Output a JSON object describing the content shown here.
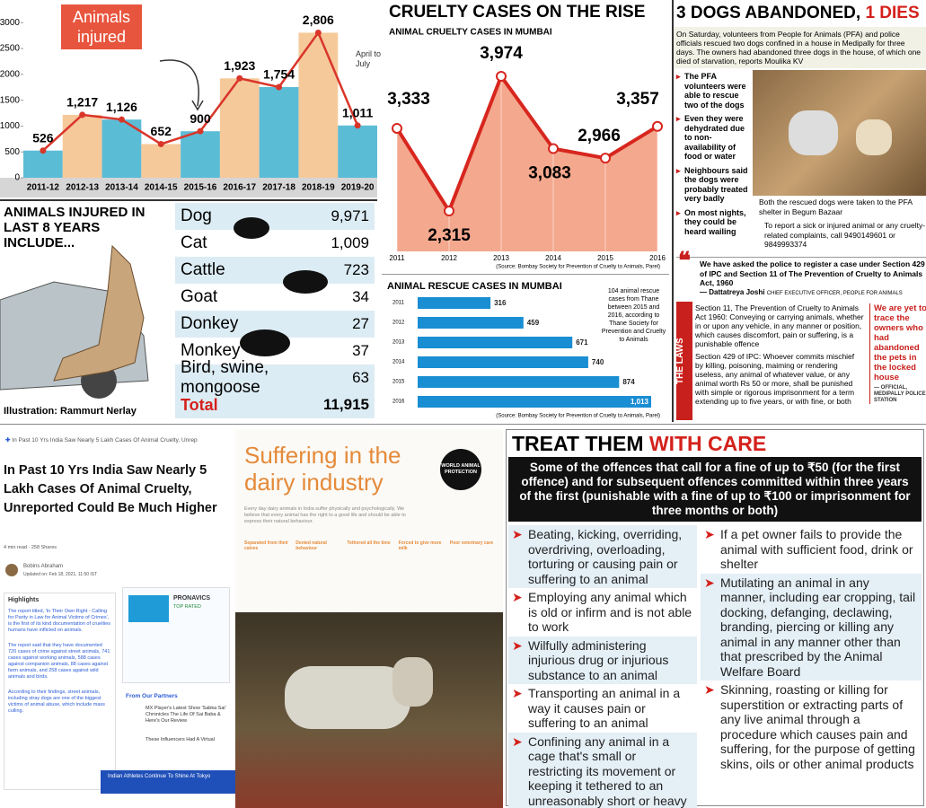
{
  "chart_data": [
    {
      "type": "bar",
      "title": "Animals injured",
      "annotation": "April to July",
      "categories": [
        "2011-12",
        "2012-13",
        "2013-14",
        "2014-15",
        "2015-16",
        "2016-17",
        "2017-18",
        "2018-19",
        "2019-20"
      ],
      "values": [
        526,
        1217,
        1126,
        652,
        900,
        1923,
        1754,
        2806,
        1011
      ],
      "value_labels": [
        "526",
        "1,217",
        "1,126",
        "652",
        "900",
        "1,923",
        "1,754",
        "2,806",
        "1,011"
      ],
      "bar_colors": [
        "#5bbcd6",
        "#f6c99a"
      ],
      "line_color": "#d9362a",
      "ylim": [
        0,
        3300
      ],
      "yticks": [
        0,
        500,
        1000,
        1500,
        2000,
        2500,
        3000
      ]
    },
    {
      "type": "line",
      "title": "CRUELTY CASES ON THE RISE",
      "subtitle": "ANIMAL CRUELTY CASES IN MUMBAI",
      "categories": [
        "2011",
        "2012",
        "2013",
        "2014",
        "2015",
        "2016"
      ],
      "values": [
        3333,
        2315,
        3974,
        3083,
        2966,
        3357
      ],
      "value_labels": [
        "3,333",
        "2,315",
        "3,974",
        "3,083",
        "2,966",
        "3,357"
      ],
      "color": "#d7261e",
      "area_color": "#f4a88e",
      "source": "(Source: Bombay Society for Prevention of Cruelty to Animals, Parel)"
    },
    {
      "type": "hbar",
      "title": "ANIMAL RESCUE CASES IN MUMBAI",
      "categories": [
        "2011",
        "2012",
        "2013",
        "2014",
        "2015",
        "2016"
      ],
      "values": [
        316,
        459,
        671,
        740,
        874,
        1013
      ],
      "value_labels": [
        "316",
        "459",
        "671",
        "740",
        "874",
        "1,013"
      ],
      "color": "#1a8ed3",
      "annotation": "104 animal rescue cases from Thane between 2015 and 2016, according to Thane Society for Prevention and Cruelty to Animals",
      "source": "(Source: Bombay Society for Prevention of Cruelty to Animals, Parel)"
    }
  ],
  "injured_table": {
    "title": "ANIMALS INJURED IN LAST 8 YEARS INCLUDE...",
    "rows": [
      [
        "Dog",
        "9,971"
      ],
      [
        "Cat",
        "1,009"
      ],
      [
        "Cattle",
        "723"
      ],
      [
        "Goat",
        "34"
      ],
      [
        "Donkey",
        "27"
      ],
      [
        "Monkey",
        "37"
      ],
      [
        "Bird, swine, mongoose",
        "63"
      ]
    ],
    "total": [
      "Total",
      "11,915"
    ],
    "credit": "Illustration: Rammurt Nerlay"
  },
  "dogs_article": {
    "title": "3 DOGS ABANDONED, ",
    "title_red": "1 DIES",
    "intro": "On Saturday, volunteers from People for Animals (PFA) and police officials rescued two dogs confined in a house in Medipally for three days. The owners had abandoned three dogs in the house, of which one died of starvation, reports Moulika KV",
    "bullets": [
      "The PFA volunteers were able to rescue two of the dogs",
      "Even they were dehydrated due to non-availability of food or water",
      "Neighbours said the dogs were probably treated very badly",
      "On most nights, they could be heard wailing"
    ],
    "caption": "Both the rescued dogs were taken to the PFA shelter in Begum Bazaar",
    "report": "To report a sick or injured animal or any cruelty-related complaints, call 9490149601 or 9849993374",
    "quote": "We have asked the police to register a case under Section 429 of IPC and Section 11 of The Prevention of Cruelty to Animals Act, 1960",
    "quote_author": "— Dattatreya Joshi",
    "quote_role": "CHIEF EXECUTIVE OFFICER, PEOPLE FOR ANIMALS",
    "laws_tag": "THE LAWS",
    "laws": [
      "Section 11, The Prevention of Cruelty to Animals Act 1960: Conveying or carrying animals, whether in or upon any vehicle, in any manner or position, which causes discomfort, pain or suffering, is a punishable offence",
      "Section 429 of IPC: Whoever commits mischief by killing, poisoning, maiming or rendering useless, any animal of whatever value, or any animal worth Rs 50 or more, shall be punished with simple or rigorous imprisonment for a term extending up to five years, or with fine, or both"
    ],
    "side_quote": "We are yet to trace the owners who had abandoned the pets in the locked house",
    "side_author": "— OFFICIAL, MEDIPALLY POLICE STATION"
  },
  "news_screenshot": {
    "breadcrumb": "In Past 10 Yrs India Saw Nearly 5 Lakh Cases Of Animal Cruelty, Unrep",
    "title": "In Past 10 Yrs India Saw Nearly 5 Lakh Cases Of Animal Cruelty, Unreported Could Be Much Higher",
    "meta": "4 min read · 258 Shares",
    "author": "Bobins Abraham",
    "updated": "Updated on: Feb 18, 2021, 11:50 IST",
    "highlights_title": "Highlights",
    "highlights": [
      "The report titled, 'In Their Own Right - Calling for Parity in Law for Animal Victims of Crimes', is the first of its kind documentation of cruelties humans have inflicted on animals.",
      "The report said that they have documented 720 cases of crime against street animals, 741 cases against working animals, 588 cases against companion animals, 88 cases against farm animals, and 258 cases against wild animals and birds.",
      "According to their findings, street animals, including stray dogs are one of the biggest victims of animal abuse, which include mass culling."
    ],
    "ad_brand": "PRONAVICS",
    "ad_tag": "TOP RATED",
    "partners_title": "From Our Partners",
    "partners": [
      "MX Player's Latest Show 'Sabka Sai' Chronicles The Life Of Sai Baba & Here's Our Review",
      "These Influencers Had A Virtual"
    ],
    "bottom_bar": "Indian Athletes Continue To Shine At Tokyo"
  },
  "dairy": {
    "title": "Suffering in the dairy industry",
    "logo": "WORLD ANIMAL PROTECTION",
    "intro": "Every day dairy animals in India suffer physically and psychologically. We believe that every animal has the right to a good life and should be able to express their natural behaviour.",
    "columns": [
      "Separated from their calves",
      "Denied natural behaviour",
      "Tethered all the time",
      "Forced to give more milk",
      "Poor veterinary care"
    ]
  },
  "treat_care": {
    "title": "TREAT THEM ",
    "title_red": "WITH CARE",
    "box": "Some of the offences that call for a fine of up to ₹50 (for the first offence) and for subsequent offences committed within three years of the first (punishable with a fine of up to ₹100 or imprisonment for three months or both)",
    "left": [
      "Beating, kicking, overriding, overdriving, overloading, torturing or causing pain or suffering to an animal",
      "Employing any animal which is old or infirm and is not able to work",
      "Wilfully administering injurious drug or injurious substance to an animal",
      "Transporting an animal in a way it causes pain or suffering to an animal",
      "Confining any animal in a cage that's small or restricting its movement or keeping it tethered to an unreasonably short or heavy chain"
    ],
    "right": [
      "If a pet owner fails to provide the animal with sufficient food, drink or shelter",
      "Mutilating an animal in any manner, including ear cropping, tail docking, defanging, declawing, branding, piercing or killing any animal in any manner other than that prescribed by the Animal Welfare Board",
      "Skinning, roasting or killing for superstition or extracting parts of any live animal through a procedure which causes pain and suffering, for the purpose of getting skins, oils or other animal products"
    ]
  }
}
